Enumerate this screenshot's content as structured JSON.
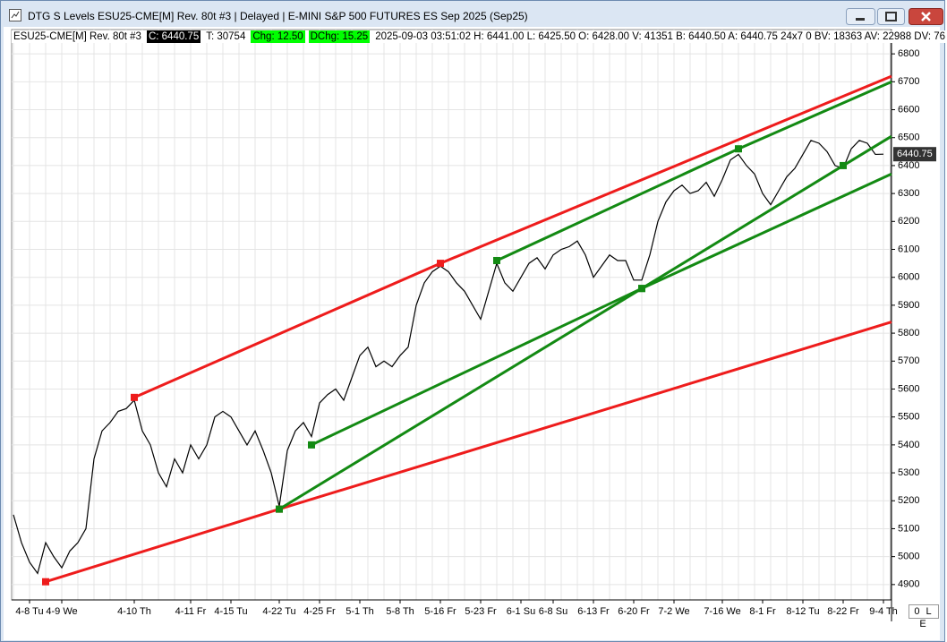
{
  "window": {
    "title": "DTG S Levels ESU25-CME[M]  Rev. 80t #3 | Delayed | E-MINI S&P 500 FUTURES ES Sep 2025 (Sep25)",
    "corner_label": "0 L E"
  },
  "info_bar": [
    {
      "text": "ESU25-CME[M]  Rev. 80t #3",
      "bg": "#ffffff",
      "fg": "#000000"
    },
    {
      "text": "C: 6440.75",
      "bg": "#000000",
      "fg": "#ffffff"
    },
    {
      "text": "T: 30754",
      "bg": "#ffffff",
      "fg": "#000000"
    },
    {
      "text": "Chg: 12.50",
      "bg": "#00ff00",
      "fg": "#000000"
    },
    {
      "text": "DChg: 15.25",
      "bg": "#00ff00",
      "fg": "#000000"
    },
    {
      "text": "2025-09-03 03:51:02 H: 6441.00 L: 6425.50 O: 6428.00 V: 41351 B: 6440.50 A: 6440.75 24x7 0 BV: 18363 AV: 22988 DV: 76",
      "bg": "#ffffff",
      "fg": "#000000"
    }
  ],
  "chart_data": {
    "type": "line",
    "categories": [
      null,
      null,
      "4-8 Tu",
      null,
      null,
      null,
      "4-9 We",
      null,
      null,
      null,
      null,
      null,
      null,
      null,
      null,
      "4-10 Th",
      null,
      null,
      null,
      null,
      null,
      null,
      "4-11 Fr",
      null,
      null,
      null,
      null,
      "4-15 Tu",
      null,
      null,
      null,
      null,
      null,
      "4-22 Tu",
      null,
      null,
      null,
      null,
      "4-25 Fr",
      null,
      null,
      null,
      null,
      "5-1 Th",
      null,
      null,
      null,
      null,
      "5-8 Th",
      null,
      null,
      null,
      null,
      "5-16 Fr",
      null,
      null,
      null,
      null,
      "5-23 Fr",
      null,
      null,
      null,
      null,
      "6-1 Su",
      null,
      null,
      null,
      "6-8 Su",
      null,
      null,
      null,
      null,
      "6-13 Fr",
      null,
      null,
      null,
      null,
      "6-20 Fr",
      null,
      null,
      null,
      null,
      "7-2 We",
      null,
      null,
      null,
      null,
      null,
      "7-16 We",
      null,
      null,
      null,
      null,
      "8-1 Fr",
      null,
      null,
      null,
      null,
      "8-12 Tu",
      null,
      null,
      null,
      null,
      "8-22 Fr",
      null,
      null,
      null,
      null,
      "9-4 Th"
    ],
    "values": [
      5150,
      5050,
      4980,
      4940,
      5050,
      5000,
      4960,
      5020,
      5050,
      5100,
      5350,
      5450,
      5480,
      5520,
      5530,
      5560,
      5450,
      5400,
      5300,
      5250,
      5350,
      5300,
      5400,
      5350,
      5400,
      5500,
      5520,
      5500,
      5450,
      5400,
      5450,
      5380,
      5300,
      5180,
      5380,
      5450,
      5480,
      5430,
      5550,
      5580,
      5600,
      5560,
      5640,
      5720,
      5750,
      5680,
      5700,
      5680,
      5720,
      5750,
      5900,
      5980,
      6020,
      6040,
      6020,
      5980,
      5950,
      5900,
      5850,
      5950,
      6050,
      5980,
      5950,
      6000,
      6050,
      6070,
      6030,
      6080,
      6100,
      6110,
      6130,
      6080,
      6000,
      6040,
      6080,
      6060,
      6060,
      5990,
      5990,
      6080,
      6200,
      6270,
      6310,
      6330,
      6300,
      6310,
      6340,
      6290,
      6350,
      6420,
      6440,
      6400,
      6370,
      6300,
      6260,
      6310,
      6360,
      6390,
      6440,
      6490,
      6480,
      6450,
      6400,
      6390,
      6460,
      6490,
      6480,
      6440,
      6440.75
    ],
    "color": "#000000",
    "trendlines": [
      {
        "color": "#ee1c1c",
        "points": [
          [
            15,
            5570
          ],
          [
            53,
            6050
          ],
          [
            109,
            6720
          ]
        ]
      },
      {
        "color": "#ee1c1c",
        "points": [
          [
            4,
            4910
          ],
          [
            33,
            5170
          ],
          [
            109,
            5840
          ]
        ]
      },
      {
        "color": "#138a13",
        "points": [
          [
            33,
            5170
          ],
          [
            78,
            5960
          ],
          [
            103,
            6400
          ],
          [
            109,
            6505
          ]
        ]
      },
      {
        "color": "#138a13",
        "points": [
          [
            37,
            5400
          ],
          [
            78,
            5960
          ],
          [
            109,
            6370
          ]
        ]
      },
      {
        "color": "#138a13",
        "points": [
          [
            60,
            6060
          ],
          [
            90,
            6460
          ],
          [
            109,
            6700
          ]
        ]
      }
    ],
    "ylim": [
      4845,
      6887
    ],
    "yticks": [
      4900,
      5000,
      5100,
      5200,
      5300,
      5400,
      5500,
      5600,
      5700,
      5800,
      5900,
      6000,
      6100,
      6200,
      6300,
      6400,
      6500,
      6600,
      6700,
      6800
    ],
    "grid": true
  }
}
